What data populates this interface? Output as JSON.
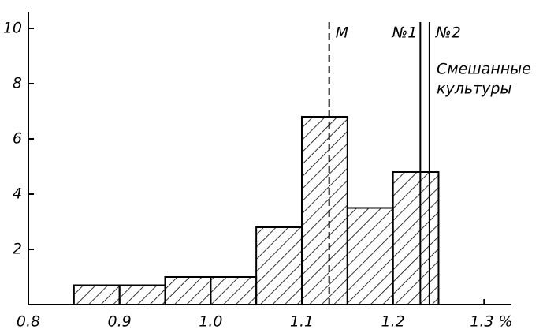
{
  "chart_data": {
    "type": "histogram",
    "bins": [
      0.85,
      0.9,
      0.95,
      1.0,
      1.05,
      1.1,
      1.15,
      1.2,
      1.25
    ],
    "values": [
      0.7,
      0.7,
      1.0,
      1.0,
      2.8,
      6.8,
      3.5,
      4.8
    ],
    "color": "#000000",
    "xlim": [
      0.8,
      1.33
    ],
    "ylim": [
      0,
      10.6
    ],
    "xticks": [
      0.8,
      0.9,
      {
        "value": 1.0,
        "label": "1.0"
      },
      1.1,
      1.2,
      {
        "value": 1.3,
        "label": "1.3 %"
      }
    ],
    "yticks": [
      2,
      4,
      6,
      8,
      10
    ],
    "reference_lines": [
      {
        "x": 1.13,
        "label": "M",
        "style": "dashed"
      },
      {
        "x": 1.23,
        "label": "№1",
        "style": "solid"
      },
      {
        "x": 1.24,
        "label": "№2",
        "style": "solid"
      }
    ],
    "annotation": [
      "Смешанные",
      "культуры"
    ]
  }
}
